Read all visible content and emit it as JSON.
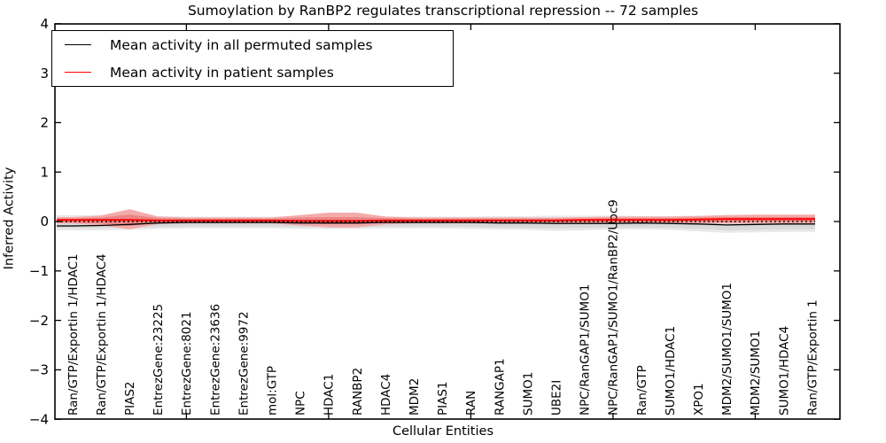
{
  "chart_data": {
    "type": "line",
    "title": "Sumoylation by RanBP2 regulates transcriptional repression -- 72 samples",
    "xlabel": "Cellular Entities",
    "ylabel": "Inferred Activity",
    "ylim": [
      -4,
      4
    ],
    "ytick_values": [
      4,
      3,
      2,
      1,
      0,
      -1,
      -2,
      -3,
      -4
    ],
    "ytick_labels": [
      "4",
      "3",
      "2",
      "1",
      "0",
      "−1",
      "−2",
      "−3",
      "−4"
    ],
    "grid": false,
    "legend_position": "upper left",
    "x_major_tick_indices": [
      4,
      9,
      14,
      19,
      24
    ],
    "categories": [
      "Ran/GTP/Exportin 1/HDAC1",
      "Ran/GTP/Exportin 1/HDAC4",
      "PIAS2",
      "EntrezGene:23225",
      "EntrezGene:8021",
      "EntrezGene:23636",
      "EntrezGene:9972",
      "mol:GTP",
      "NPC",
      "HDAC1",
      "RANBP2",
      "HDAC4",
      "MDM2",
      "PIAS1",
      "RAN",
      "RANGAP1",
      "SUMO1",
      "UBE2I",
      "NPC/RanGAP1/SUMO1",
      "NPC/RanGAP1/SUMO1/RanBP2/Ubc9",
      "Ran/GTP",
      "SUMO1/HDAC1",
      "XPO1",
      "MDM2/SUMO1/SUMO1",
      "MDM2/SUMO1",
      "SUMO1/HDAC4",
      "Ran/GTP/Exportin 1"
    ],
    "series": [
      {
        "name": "Mean activity in all permuted samples",
        "color": "#000000",
        "values": [
          -0.09,
          -0.08,
          -0.06,
          -0.03,
          -0.02,
          -0.02,
          -0.02,
          -0.02,
          -0.03,
          -0.03,
          -0.03,
          -0.02,
          -0.02,
          -0.02,
          -0.02,
          -0.03,
          -0.03,
          -0.04,
          -0.04,
          -0.04,
          -0.03,
          -0.04,
          -0.05,
          -0.07,
          -0.06,
          -0.05,
          -0.05
        ]
      },
      {
        "name": "Mean activity in patient samples",
        "color": "#ff0000",
        "values": [
          0.03,
          0.03,
          0.03,
          0.02,
          0.02,
          0.02,
          0.02,
          0.02,
          0.01,
          0.01,
          0.01,
          0.02,
          0.02,
          0.02,
          0.02,
          0.02,
          0.02,
          0.02,
          0.03,
          0.03,
          0.03,
          0.03,
          0.04,
          0.05,
          0.05,
          0.05,
          0.05
        ]
      }
    ],
    "bands": [
      {
        "name": "permuted-samples-outer-band",
        "color": "#e9e9e9",
        "upper": [
          0.13,
          0.13,
          0.13,
          0.11,
          0.1,
          0.1,
          0.1,
          0.1,
          0.1,
          0.1,
          0.1,
          0.1,
          0.1,
          0.1,
          0.1,
          0.11,
          0.11,
          0.12,
          0.12,
          0.12,
          0.11,
          0.11,
          0.12,
          0.12,
          0.12,
          0.12,
          0.12
        ],
        "lower": [
          -0.18,
          -0.18,
          -0.17,
          -0.15,
          -0.14,
          -0.14,
          -0.14,
          -0.14,
          -0.15,
          -0.15,
          -0.15,
          -0.14,
          -0.14,
          -0.14,
          -0.15,
          -0.16,
          -0.17,
          -0.19,
          -0.18,
          -0.16,
          -0.16,
          -0.17,
          -0.2,
          -0.23,
          -0.22,
          -0.21,
          -0.21
        ]
      },
      {
        "name": "permuted-samples-inner-band",
        "color": "#d9d9d9",
        "upper": [
          0.09,
          0.09,
          0.09,
          0.08,
          0.07,
          0.07,
          0.07,
          0.07,
          0.07,
          0.07,
          0.07,
          0.07,
          0.07,
          0.07,
          0.07,
          0.08,
          0.08,
          0.08,
          0.08,
          0.08,
          0.08,
          0.08,
          0.08,
          0.08,
          0.08,
          0.08,
          0.08
        ],
        "lower": [
          -0.13,
          -0.13,
          -0.12,
          -0.11,
          -0.1,
          -0.1,
          -0.1,
          -0.1,
          -0.11,
          -0.11,
          -0.11,
          -0.1,
          -0.1,
          -0.1,
          -0.11,
          -0.12,
          -0.13,
          -0.14,
          -0.13,
          -0.12,
          -0.12,
          -0.13,
          -0.15,
          -0.18,
          -0.17,
          -0.16,
          -0.16
        ]
      },
      {
        "name": "patient-samples-outer-band",
        "color": "#f3abab",
        "upper": [
          0.09,
          0.12,
          0.25,
          0.1,
          0.08,
          0.08,
          0.08,
          0.08,
          0.13,
          0.18,
          0.18,
          0.1,
          0.08,
          0.08,
          0.08,
          0.08,
          0.08,
          0.08,
          0.09,
          0.1,
          0.1,
          0.1,
          0.11,
          0.13,
          0.14,
          0.14,
          0.14
        ],
        "lower": [
          -0.04,
          -0.08,
          -0.16,
          -0.05,
          -0.04,
          -0.04,
          -0.04,
          -0.04,
          -0.08,
          -0.12,
          -0.12,
          -0.06,
          -0.04,
          -0.04,
          -0.04,
          -0.04,
          -0.04,
          -0.04,
          -0.04,
          -0.04,
          -0.04,
          -0.04,
          -0.04,
          -0.04,
          -0.04,
          -0.04,
          -0.03
        ]
      },
      {
        "name": "patient-samples-inner-band",
        "color": "#ea8585",
        "upper": [
          0.06,
          0.08,
          0.14,
          0.07,
          0.06,
          0.06,
          0.06,
          0.06,
          0.08,
          0.09,
          0.09,
          0.07,
          0.06,
          0.06,
          0.06,
          0.06,
          0.06,
          0.06,
          0.06,
          0.07,
          0.07,
          0.07,
          0.08,
          0.09,
          0.09,
          0.09,
          0.09
        ],
        "lower": [
          -0.02,
          -0.04,
          -0.09,
          -0.02,
          -0.01,
          -0.01,
          -0.01,
          -0.01,
          -0.04,
          -0.05,
          -0.05,
          -0.02,
          -0.01,
          -0.01,
          -0.01,
          -0.01,
          -0.01,
          -0.01,
          -0.01,
          -0.01,
          -0.01,
          -0.01,
          -0.01,
          -0.01,
          0.0,
          0.0,
          0.0
        ]
      }
    ],
    "zero_line": {
      "value": 0,
      "style": "dotted",
      "color": "#000000"
    }
  }
}
